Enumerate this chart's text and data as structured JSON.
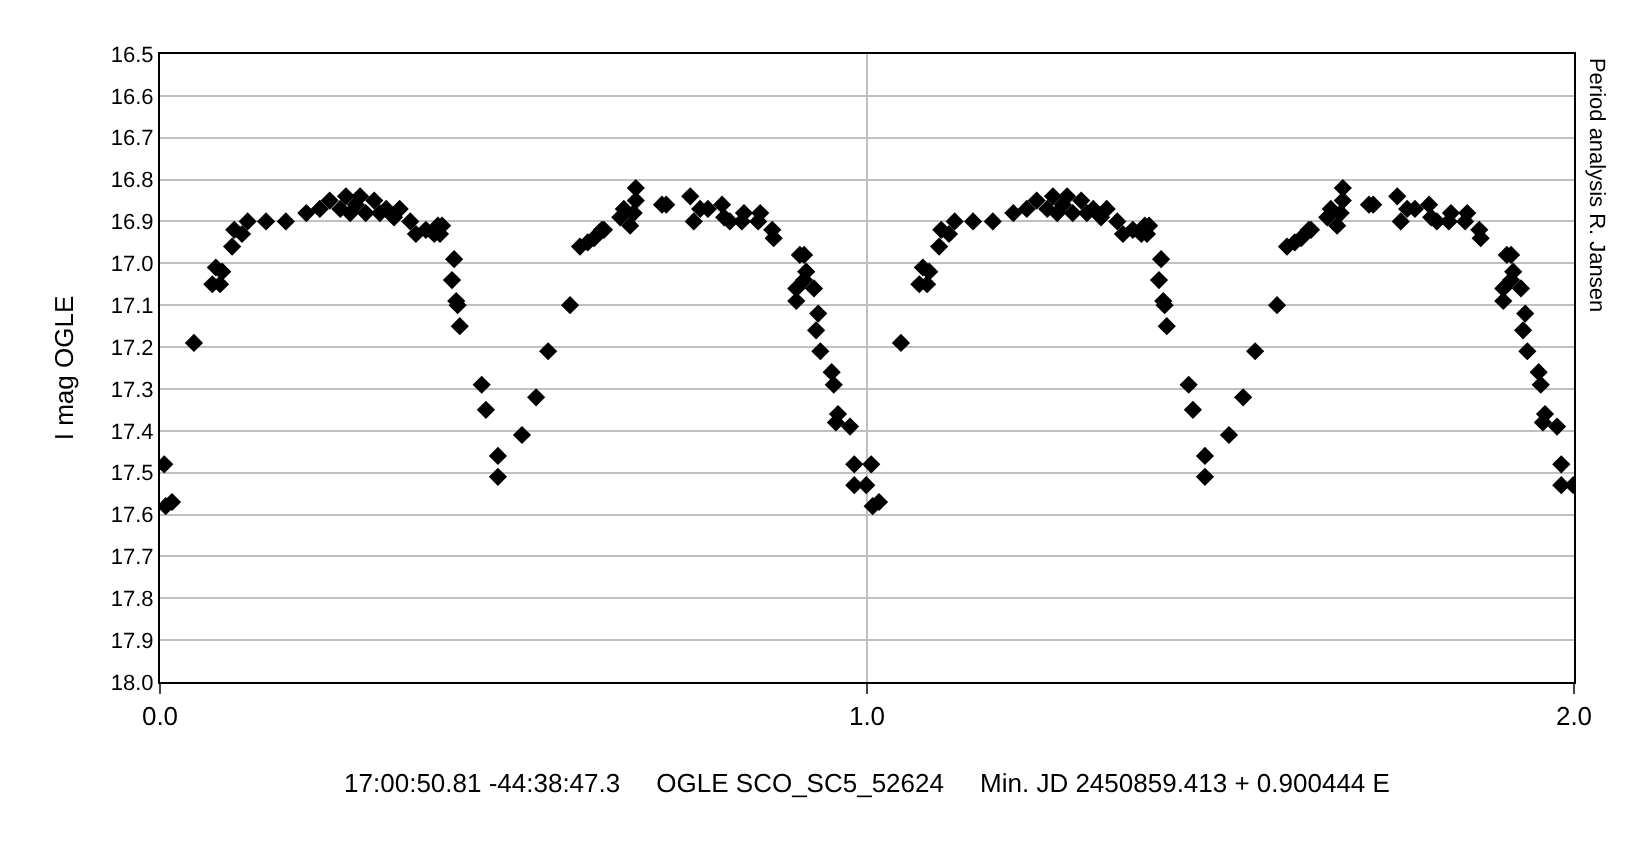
{
  "chart_data": {
    "type": "scatter",
    "xlabel": "17:00:50.81 -44:38:47.3     OGLE SCO_SC5_52624     Min. JD 2450859.413 + 0.900444 E",
    "ylabel": "I mag OGLE",
    "annotations": [
      "Period analysis R. Jansen"
    ],
    "xlim": [
      0.0,
      2.0
    ],
    "xticks": [
      {
        "value": 0,
        "label": "0.0"
      },
      {
        "value": 1,
        "label": "1.0"
      },
      {
        "value": 2,
        "label": "2.0"
      }
    ],
    "ylim": [
      18.0,
      16.5
    ],
    "yticks": [
      {
        "value": 16.5,
        "label": "16.5"
      },
      {
        "value": 16.6,
        "label": "16.6"
      },
      {
        "value": 16.7,
        "label": "16.7"
      },
      {
        "value": 16.8,
        "label": "16.8"
      },
      {
        "value": 16.9,
        "label": "16.9"
      },
      {
        "value": 17.0,
        "label": "17.0"
      },
      {
        "value": 17.1,
        "label": "17.1"
      },
      {
        "value": 17.2,
        "label": "17.2"
      },
      {
        "value": 17.3,
        "label": "17.3"
      },
      {
        "value": 17.4,
        "label": "17.4"
      },
      {
        "value": 17.5,
        "label": "17.5"
      },
      {
        "value": 17.6,
        "label": "17.6"
      },
      {
        "value": 17.7,
        "label": "17.7"
      },
      {
        "value": 17.8,
        "label": "17.8"
      },
      {
        "value": 17.9,
        "label": "17.9"
      },
      {
        "value": 18.0,
        "label": "18.0"
      }
    ],
    "grid": true,
    "marker": "diamond",
    "series": [
      {
        "color": "#000000",
        "x": [
          0.006,
          0.008,
          0.017,
          0.048,
          0.074,
          0.085,
          0.079,
          0.088,
          0.102,
          0.105,
          0.116,
          0.124,
          0.15,
          0.178,
          0.207,
          0.226,
          0.24,
          0.255,
          0.263,
          0.269,
          0.277,
          0.283,
          0.291,
          0.303,
          0.311,
          0.32,
          0.331,
          0.339,
          0.354,
          0.362,
          0.376,
          0.388,
          0.393,
          0.399,
          0.396,
          0.416,
          0.413,
          0.419,
          0.421,
          0.424,
          0.455,
          0.461,
          0.478,
          0.478,
          0.512,
          0.532,
          0.549,
          0.58,
          0.594,
          0.605,
          0.614,
          0.625,
          0.628,
          0.651,
          0.656,
          0.665,
          0.67,
          0.673,
          0.673,
          0.71,
          0.716,
          0.75,
          0.764,
          0.755,
          0.775,
          0.795,
          0.798,
          0.806,
          0.823,
          0.826,
          0.846,
          0.849,
          0.866,
          0.868,
          0.911,
          0.905,
          0.914,
          0.911,
          0.9,
          0.9,
          0.925,
          0.931,
          0.928,
          0.934,
          0.95,
          0.953,
          0.959,
          0.956,
          0.976,
          0.982,
          0.982,
          0.999,
          1.006,
          1.008,
          1.017,
          1.048,
          1.074,
          1.085,
          1.079,
          1.088,
          1.102,
          1.105,
          1.116,
          1.124,
          1.15,
          1.178,
          1.207,
          1.226,
          1.24,
          1.255,
          1.263,
          1.269,
          1.277,
          1.283,
          1.291,
          1.303,
          1.311,
          1.32,
          1.331,
          1.339,
          1.354,
          1.362,
          1.376,
          1.388,
          1.393,
          1.399,
          1.396,
          1.416,
          1.413,
          1.419,
          1.421,
          1.424,
          1.455,
          1.461,
          1.478,
          1.478,
          1.512,
          1.532,
          1.549,
          1.58,
          1.594,
          1.605,
          1.614,
          1.625,
          1.628,
          1.651,
          1.656,
          1.665,
          1.67,
          1.673,
          1.673,
          1.71,
          1.716,
          1.75,
          1.764,
          1.755,
          1.775,
          1.795,
          1.798,
          1.806,
          1.823,
          1.826,
          1.846,
          1.849,
          1.866,
          1.868,
          1.911,
          1.905,
          1.914,
          1.911,
          1.9,
          1.9,
          1.925,
          1.931,
          1.928,
          1.934,
          1.95,
          1.953,
          1.959,
          1.956,
          1.976,
          1.982,
          1.982,
          1.999
        ],
        "values": [
          17.48,
          17.58,
          17.57,
          17.19,
          17.05,
          17.05,
          17.01,
          17.02,
          16.96,
          16.92,
          16.93,
          16.9,
          16.9,
          16.9,
          16.88,
          16.87,
          16.85,
          16.87,
          16.84,
          16.88,
          16.86,
          16.84,
          16.88,
          16.85,
          16.88,
          16.87,
          16.89,
          16.87,
          16.9,
          16.93,
          16.92,
          16.93,
          16.91,
          16.91,
          16.93,
          16.99,
          17.04,
          17.09,
          17.1,
          17.15,
          17.29,
          17.35,
          17.46,
          17.51,
          17.41,
          17.32,
          17.21,
          17.1,
          16.96,
          16.95,
          16.94,
          16.92,
          16.92,
          16.89,
          16.87,
          16.91,
          16.88,
          16.82,
          16.85,
          16.86,
          16.86,
          16.84,
          16.87,
          16.9,
          16.87,
          16.86,
          16.89,
          16.9,
          16.9,
          16.88,
          16.9,
          16.88,
          16.92,
          16.94,
          16.98,
          16.98,
          17.02,
          17.04,
          17.06,
          17.09,
          17.06,
          17.12,
          17.16,
          17.21,
          17.26,
          17.29,
          17.36,
          17.38,
          17.39,
          17.48,
          17.53,
          17.53,
          17.48,
          17.58,
          17.57,
          17.19,
          17.05,
          17.05,
          17.01,
          17.02,
          16.96,
          16.92,
          16.93,
          16.9,
          16.9,
          16.9,
          16.88,
          16.87,
          16.85,
          16.87,
          16.84,
          16.88,
          16.86,
          16.84,
          16.88,
          16.85,
          16.88,
          16.87,
          16.89,
          16.87,
          16.9,
          16.93,
          16.92,
          16.93,
          16.91,
          16.91,
          16.93,
          16.99,
          17.04,
          17.09,
          17.1,
          17.15,
          17.29,
          17.35,
          17.46,
          17.51,
          17.41,
          17.32,
          17.21,
          17.1,
          16.96,
          16.95,
          16.94,
          16.92,
          16.92,
          16.89,
          16.87,
          16.91,
          16.88,
          16.82,
          16.85,
          16.86,
          16.86,
          16.84,
          16.87,
          16.9,
          16.87,
          16.86,
          16.89,
          16.9,
          16.9,
          16.88,
          16.9,
          16.88,
          16.92,
          16.94,
          16.98,
          16.98,
          17.02,
          17.04,
          17.06,
          17.09,
          17.06,
          17.12,
          17.16,
          17.21,
          17.26,
          17.29,
          17.36,
          17.38,
          17.39,
          17.48,
          17.53,
          17.53
        ]
      }
    ]
  }
}
